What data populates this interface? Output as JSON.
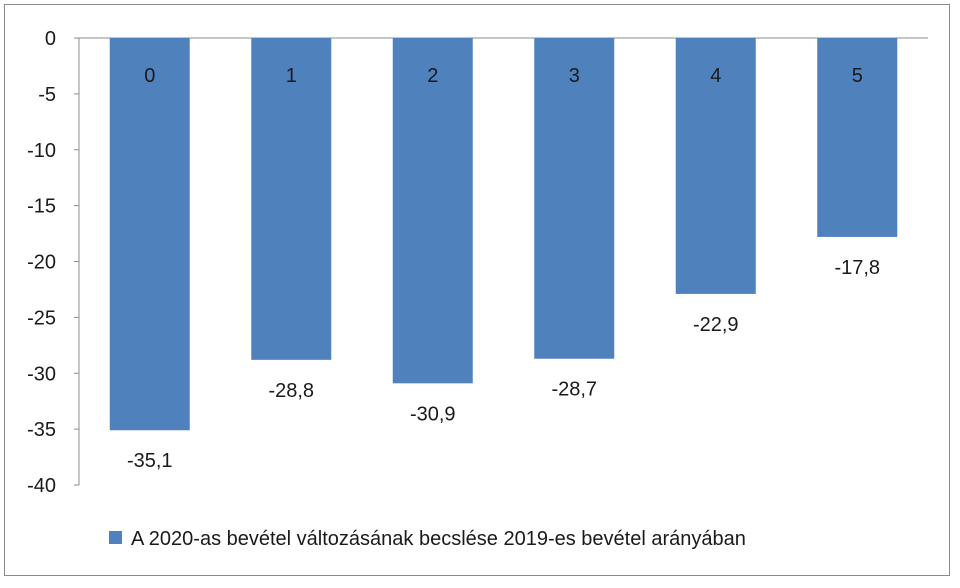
{
  "chart_data": {
    "type": "bar",
    "categories": [
      "0",
      "1",
      "2",
      "3",
      "4",
      "5"
    ],
    "series": [
      {
        "name": "A 2020-as bevétel változásának becslése 2019-es bevétel arányában",
        "values": [
          -35.1,
          -28.8,
          -30.9,
          -28.7,
          -22.9,
          -17.8
        ],
        "value_labels": [
          "-35,1",
          "-28,8",
          "-30,9",
          "-28,7",
          "-22,9",
          "-17,8"
        ]
      }
    ],
    "ylim": [
      -40,
      0
    ],
    "yticks": [
      0,
      -5,
      -10,
      -15,
      -20,
      -25,
      -30,
      -35,
      -40
    ],
    "ytick_labels": [
      "0",
      "-5",
      "-10",
      "-15",
      "-20",
      "-25",
      "-30",
      "-35",
      "-40"
    ],
    "title": "",
    "xlabel": "",
    "ylabel": "",
    "grid": false,
    "legend_position": "bottom",
    "colors": {
      "bar": "#4f81bd",
      "axis": "#8c8c8c",
      "text": "#1a1a1a"
    }
  }
}
